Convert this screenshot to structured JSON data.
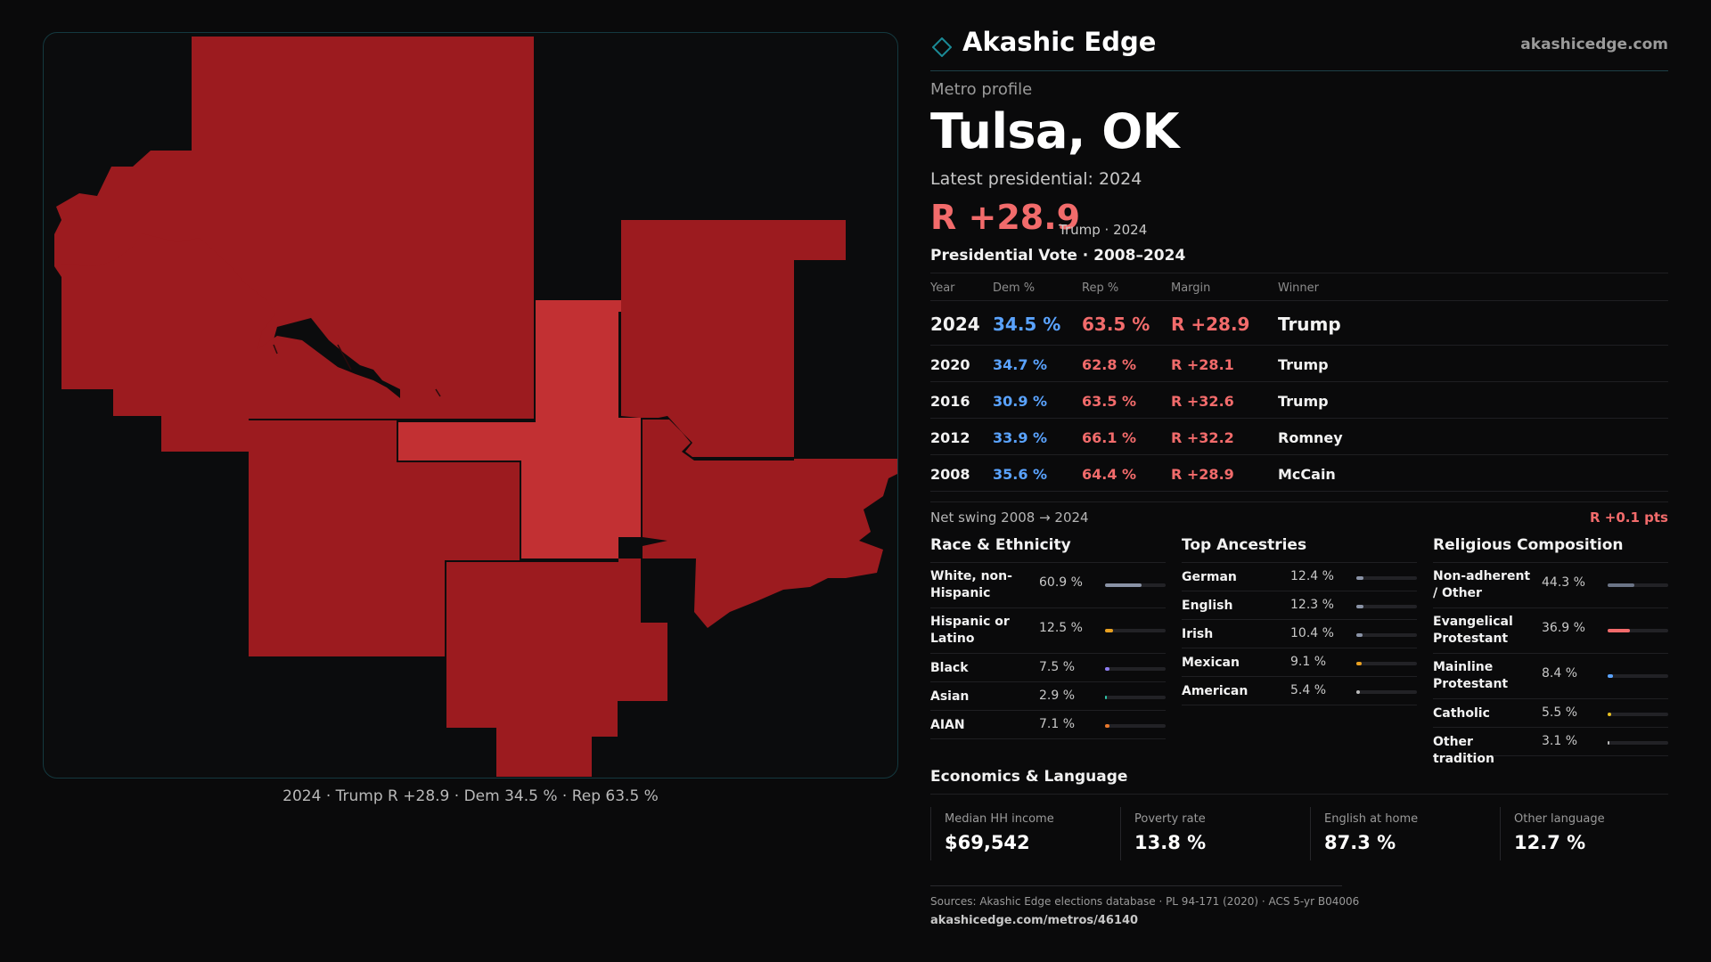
{
  "map": {
    "caption": "2024 · Trump R +28.9 · Dem 34.5 % · Rep 63.5 %",
    "colors": {
      "dark_red": "#9c1b1f",
      "mid_red": "#c23033",
      "background": "#0b0c0d"
    }
  },
  "brand": {
    "name": "Akashic Edge",
    "url": "akashicedge.com",
    "icon": "diamond-outline-icon",
    "accent": "#1b8a96"
  },
  "profile": {
    "eyebrow": "Metro profile",
    "title": "Tulsa, OK",
    "latest": "Latest presidential: 2024",
    "margin": "R +28.9",
    "winner": "Trump · 2024"
  },
  "vote": {
    "heading": "Presidential Vote · 2008–2024",
    "columns": [
      "Year",
      "Dem %",
      "Rep %",
      "Margin",
      "Winner"
    ],
    "rows": [
      {
        "year": "2024",
        "dem": "34.5 %",
        "rep": "63.5 %",
        "margin": "R +28.9",
        "winner": "Trump"
      },
      {
        "year": "2020",
        "dem": "34.7 %",
        "rep": "62.8 %",
        "margin": "R +28.1",
        "winner": "Trump"
      },
      {
        "year": "2016",
        "dem": "30.9 %",
        "rep": "63.5 %",
        "margin": "R +32.6",
        "winner": "Trump"
      },
      {
        "year": "2012",
        "dem": "33.9 %",
        "rep": "66.1 %",
        "margin": "R +32.2",
        "winner": "Romney"
      },
      {
        "year": "2008",
        "dem": "35.6 %",
        "rep": "64.4 %",
        "margin": "R +28.9",
        "winner": "McCain"
      }
    ],
    "swing_label": "Net swing 2008 → 2024",
    "swing_value": "R +0.1 pts"
  },
  "race": {
    "heading": "Race & Ethnicity",
    "items": [
      {
        "label": "White, non-Hispanic",
        "value": "60.9 %",
        "share": 60.9,
        "color": "#8a93a6"
      },
      {
        "label": "Hispanic or Latino",
        "value": "12.5 %",
        "share": 12.5,
        "color": "#e8a020"
      },
      {
        "label": "Black",
        "value": "7.5 %",
        "share": 7.5,
        "color": "#8d7cf0"
      },
      {
        "label": "Asian",
        "value": "2.9 %",
        "share": 2.9,
        "color": "#2fc5a8"
      },
      {
        "label": "AIAN",
        "value": "7.1 %",
        "share": 7.1,
        "color": "#e8782c"
      }
    ]
  },
  "ancestry": {
    "heading": "Top Ancestries",
    "items": [
      {
        "label": "German",
        "value": "12.4 %",
        "share": 12.4,
        "color": "#8a93a6"
      },
      {
        "label": "English",
        "value": "12.3 %",
        "share": 12.3,
        "color": "#8a93a6"
      },
      {
        "label": "Irish",
        "value": "10.4 %",
        "share": 10.4,
        "color": "#8a93a6"
      },
      {
        "label": "Mexican",
        "value": "9.1 %",
        "share": 9.1,
        "color": "#e8a020"
      },
      {
        "label": "American",
        "value": "5.4 %",
        "share": 5.4,
        "color": "#b9b9b9"
      }
    ]
  },
  "religion": {
    "heading": "Religious Composition",
    "items": [
      {
        "label": "Non-adherent / Other",
        "value": "44.3 %",
        "share": 44.3,
        "color": "#6b7486"
      },
      {
        "label": "Evangelical Protestant",
        "value": "36.9 %",
        "share": 36.9,
        "color": "#f26b6b"
      },
      {
        "label": "Mainline Protestant",
        "value": "8.4 %",
        "share": 8.4,
        "color": "#5aa3ff"
      },
      {
        "label": "Catholic",
        "value": "5.5 %",
        "share": 5.5,
        "color": "#e8c020"
      },
      {
        "label": "Other tradition",
        "value": "3.1 %",
        "share": 3.1,
        "color": "#b9b9b9"
      }
    ]
  },
  "economics": {
    "heading": "Economics & Language",
    "cards": [
      {
        "label": "Median HH income",
        "value": "$69,542"
      },
      {
        "label": "Poverty rate",
        "value": "13.8 %"
      },
      {
        "label": "English at home",
        "value": "87.3 %"
      },
      {
        "label": "Other language",
        "value": "12.7 %"
      }
    ]
  },
  "sources": {
    "text": "Sources: Akashic Edge elections database · PL 94-171 (2020) · ACS 5-yr B04006",
    "url": "akashicedge.com/metros/46140"
  }
}
